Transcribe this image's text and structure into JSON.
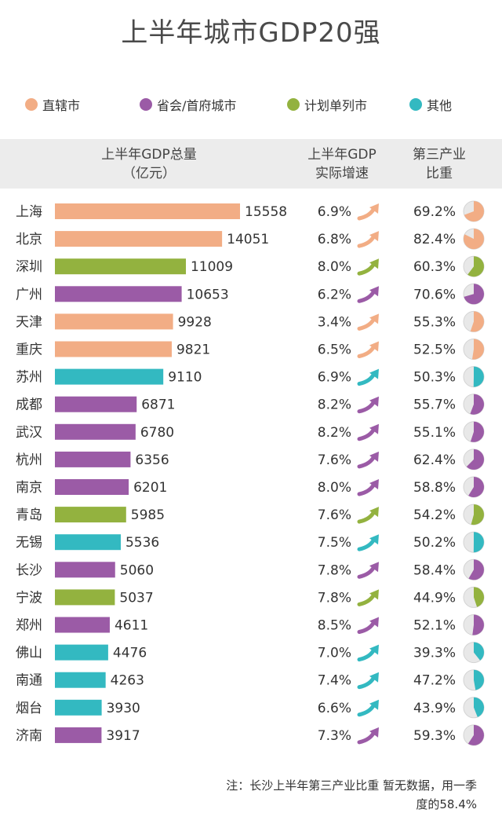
{
  "colors": {
    "直辖市": "#f2ad85",
    "省会/首府城市": "#9b5ba6",
    "计划单列市": "#93b23f",
    "其他": "#33b9c1"
  },
  "legend": [
    {
      "label": "直辖市",
      "category": "直辖市"
    },
    {
      "label": "省会/首府城市",
      "category": "省会/首府城市"
    },
    {
      "label": "计划单列市",
      "category": "计划单列市"
    },
    {
      "label": "其他",
      "category": "其他"
    }
  ],
  "headers": {
    "gdp": "上半年GDP总量\n（亿元）",
    "growth": "上半年GDP\n实际增速",
    "tertiary": "第三产业\n比重"
  },
  "note": "注：长沙上半年第三产业比重\n暂无数据，用一季度的58.4%",
  "chart_data": {
    "type": "bar",
    "title": "上半年城市GDP20强",
    "orientation": "horizontal",
    "categories": [
      "上海",
      "北京",
      "深圳",
      "广州",
      "天津",
      "重庆",
      "苏州",
      "成都",
      "武汉",
      "杭州",
      "南京",
      "青岛",
      "无锡",
      "长沙",
      "宁波",
      "郑州",
      "佛山",
      "南通",
      "烟台",
      "济南"
    ],
    "city_types": [
      "直辖市",
      "直辖市",
      "计划单列市",
      "省会/首府城市",
      "直辖市",
      "直辖市",
      "其他",
      "省会/首府城市",
      "省会/首府城市",
      "省会/首府城市",
      "省会/首府城市",
      "计划单列市",
      "其他",
      "省会/首府城市",
      "计划单列市",
      "省会/首府城市",
      "其他",
      "其他",
      "其他",
      "省会/首府城市"
    ],
    "series": [
      {
        "name": "上半年GDP总量（亿元）",
        "values": [
          15558,
          14051,
          11009,
          10653,
          9928,
          9821,
          9110,
          6871,
          6780,
          6356,
          6201,
          5985,
          5536,
          5060,
          5037,
          4611,
          4476,
          4263,
          3930,
          3917
        ]
      },
      {
        "name": "上半年GDP实际增速",
        "values": [
          "6.9%",
          "6.8%",
          "8.0%",
          "6.2%",
          "3.4%",
          "6.5%",
          "6.9%",
          "8.2%",
          "8.2%",
          "7.6%",
          "8.0%",
          "7.6%",
          "7.5%",
          "7.8%",
          "7.8%",
          "8.5%",
          "7.0%",
          "7.4%",
          "6.6%",
          "7.3%"
        ]
      },
      {
        "name": "第三产业比重",
        "values": [
          "69.2%",
          "82.4%",
          "60.3%",
          "70.6%",
          "55.3%",
          "52.5%",
          "50.3%",
          "55.7%",
          "55.1%",
          "62.4%",
          "58.8%",
          "54.2%",
          "50.2%",
          "58.4%",
          "44.9%",
          "52.1%",
          "39.3%",
          "47.2%",
          "43.9%",
          "59.3%"
        ]
      }
    ]
  }
}
